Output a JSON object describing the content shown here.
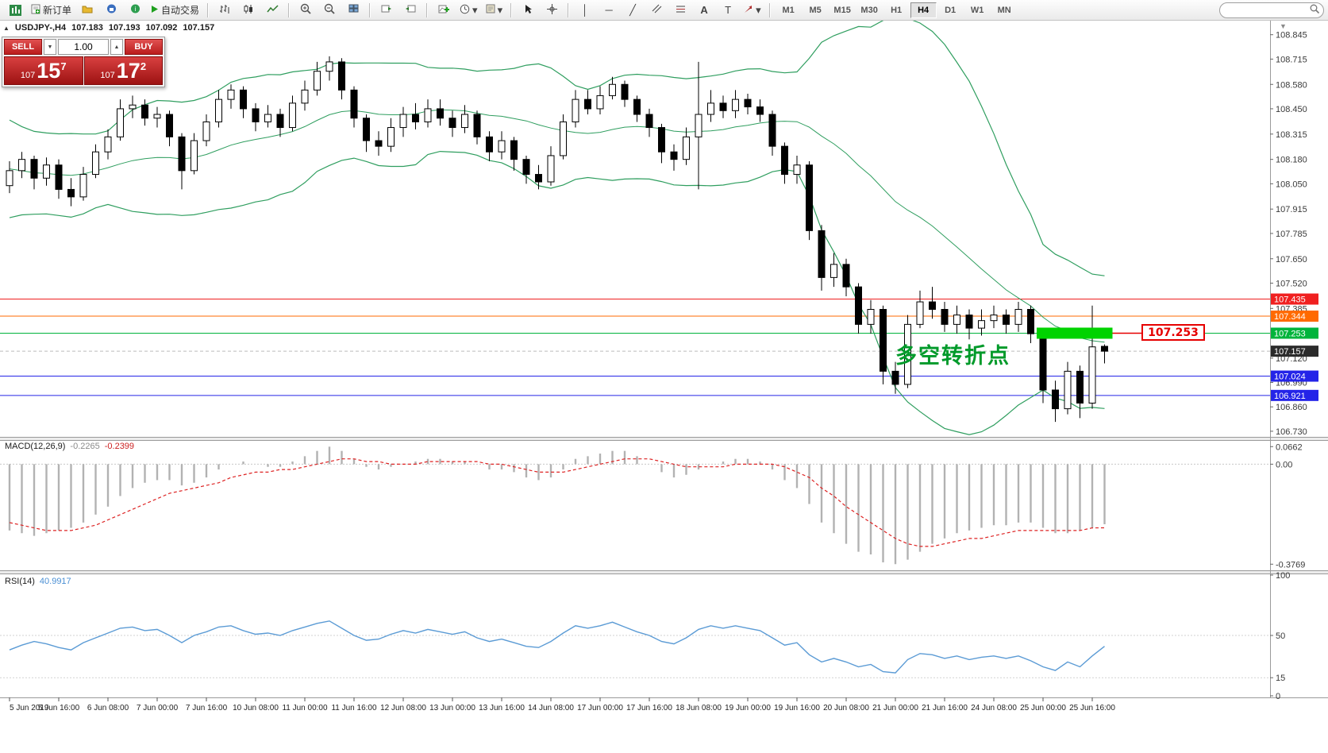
{
  "toolbar": {
    "new_order_label": "新订单",
    "auto_trading_label": "自动交易",
    "timeframes": [
      "M1",
      "M5",
      "M15",
      "M30",
      "H1",
      "H4",
      "D1",
      "W1",
      "MN"
    ],
    "active_timeframe": "H4"
  },
  "icons": {
    "collapse_arrow": "▲",
    "axis_arrow": "▼",
    "spin_up": "▲",
    "spin_down": "▼",
    "crosshair": "+",
    "vline": "│",
    "hline": "─",
    "trendline": "╱",
    "text_tool": "A",
    "label_tool": "T",
    "dropdown_arrow": "▾"
  },
  "chart_header": {
    "symbol": "USDJPY-,H4",
    "open": "107.183",
    "high": "107.193",
    "low": "107.092",
    "close": "107.157"
  },
  "trade_panel": {
    "sell_label": "SELL",
    "buy_label": "BUY",
    "volume": "1.00",
    "sell": {
      "prefix": "107",
      "big": "15",
      "sup": "7"
    },
    "buy": {
      "prefix": "107",
      "big": "17",
      "sup": "2"
    }
  },
  "indicators": {
    "macd_label": "MACD(12,26,9)",
    "macd_value": "-0.2265",
    "macd_signal_value": "-0.2399",
    "rsi_label": "RSI(14)",
    "rsi_value": "40.9917"
  },
  "annotations": {
    "turning_point_text": "多空转折点",
    "price_callout": "107.253"
  },
  "colors": {
    "bull": "#ffffff",
    "bear": "#000000",
    "wick": "#000000",
    "bands": "#2f9e5f",
    "macd_hist": "#b2b2b2",
    "macd_signal": "#dd2222",
    "rsi_line": "#5b9bd5",
    "highlight_bar": "#00d300",
    "callout_red": "#e60000",
    "current_price_bg": "#2b2b2b"
  },
  "chart_data": {
    "type": "candlestick",
    "symbol": "USDJPY",
    "timeframe": "H4",
    "price_axis": {
      "min": 106.7,
      "max": 108.92,
      "ticks": [
        108.845,
        108.715,
        108.58,
        108.45,
        108.315,
        108.18,
        108.05,
        107.915,
        107.785,
        107.65,
        107.52,
        107.385,
        107.12,
        106.99,
        106.86,
        106.73
      ]
    },
    "hlines": [
      {
        "price": 107.435,
        "color": "#f02020",
        "label": "107.435"
      },
      {
        "price": 107.344,
        "color": "#ff6a00",
        "label": "107.344"
      },
      {
        "price": 107.253,
        "color": "#00b43c",
        "label": "107.253"
      },
      {
        "price": 107.024,
        "color": "#2424e8",
        "label": "107.024"
      },
      {
        "price": 106.921,
        "color": "#2424e8",
        "label": "106.921"
      }
    ],
    "current_price": {
      "price": 107.157,
      "label": "107.157"
    },
    "time_labels": [
      "5 Jun 2019",
      "5 Jun 16:00",
      "6 Jun 08:00",
      "7 Jun 00:00",
      "7 Jun 16:00",
      "10 Jun 08:00",
      "11 Jun 00:00",
      "11 Jun 16:00",
      "12 Jun 08:00",
      "13 Jun 00:00",
      "13 Jun 16:00",
      "14 Jun 08:00",
      "17 Jun 00:00",
      "17 Jun 16:00",
      "18 Jun 08:00",
      "19 Jun 00:00",
      "19 Jun 16:00",
      "20 Jun 08:00",
      "21 Jun 00:00",
      "21 Jun 16:00",
      "24 Jun 08:00",
      "25 Jun 00:00",
      "25 Jun 16:00"
    ],
    "label_every": 4,
    "prehistory_closes": [
      108.42,
      108.38,
      108.3,
      108.22,
      108.15,
      108.05,
      107.95,
      107.9,
      107.95,
      108.05,
      108.12,
      108.2,
      108.28,
      108.32,
      108.25,
      108.15,
      108.05,
      108.0,
      108.05,
      108.1
    ],
    "candles": [
      [
        108.04,
        108.17,
        108.0,
        108.12
      ],
      [
        108.12,
        108.22,
        108.08,
        108.18
      ],
      [
        108.18,
        108.2,
        108.02,
        108.08
      ],
      [
        108.08,
        108.19,
        108.04,
        108.15
      ],
      [
        108.15,
        108.18,
        107.97,
        108.02
      ],
      [
        108.02,
        108.08,
        107.93,
        107.98
      ],
      [
        107.98,
        108.14,
        107.96,
        108.1
      ],
      [
        108.1,
        108.26,
        108.08,
        108.22
      ],
      [
        108.22,
        108.34,
        108.18,
        108.3
      ],
      [
        108.3,
        108.5,
        108.28,
        108.45
      ],
      [
        108.45,
        108.52,
        108.4,
        108.47
      ],
      [
        108.47,
        108.5,
        108.36,
        108.4
      ],
      [
        108.4,
        108.46,
        108.35,
        108.42
      ],
      [
        108.42,
        108.44,
        108.25,
        108.3
      ],
      [
        108.3,
        108.32,
        108.02,
        108.12
      ],
      [
        108.12,
        108.32,
        108.1,
        108.28
      ],
      [
        108.28,
        108.42,
        108.25,
        108.38
      ],
      [
        108.38,
        108.55,
        108.35,
        108.5
      ],
      [
        108.5,
        108.58,
        108.45,
        108.55
      ],
      [
        108.55,
        108.57,
        108.4,
        108.45
      ],
      [
        108.45,
        108.48,
        108.33,
        108.38
      ],
      [
        108.38,
        108.47,
        108.35,
        108.42
      ],
      [
        108.42,
        108.45,
        108.3,
        108.35
      ],
      [
        108.35,
        108.52,
        108.33,
        108.48
      ],
      [
        108.48,
        108.6,
        108.44,
        108.55
      ],
      [
        108.55,
        108.7,
        108.52,
        108.65
      ],
      [
        108.65,
        108.73,
        108.6,
        108.7
      ],
      [
        108.7,
        108.72,
        108.5,
        108.55
      ],
      [
        108.55,
        108.57,
        108.35,
        108.4
      ],
      [
        108.4,
        108.42,
        108.22,
        108.28
      ],
      [
        108.28,
        108.33,
        108.2,
        108.25
      ],
      [
        108.25,
        108.4,
        108.22,
        108.35
      ],
      [
        108.35,
        108.46,
        108.3,
        108.42
      ],
      [
        108.42,
        108.48,
        108.34,
        108.38
      ],
      [
        108.38,
        108.5,
        108.35,
        108.45
      ],
      [
        108.45,
        108.5,
        108.36,
        108.4
      ],
      [
        108.4,
        108.44,
        108.3,
        108.35
      ],
      [
        108.35,
        108.47,
        108.32,
        108.42
      ],
      [
        108.42,
        108.44,
        108.26,
        108.3
      ],
      [
        108.3,
        108.33,
        108.17,
        108.22
      ],
      [
        108.22,
        108.33,
        108.18,
        108.28
      ],
      [
        108.28,
        108.3,
        108.12,
        108.18
      ],
      [
        108.18,
        108.2,
        108.05,
        108.1
      ],
      [
        108.1,
        108.15,
        108.02,
        108.06
      ],
      [
        108.06,
        108.25,
        108.04,
        108.2
      ],
      [
        108.2,
        108.42,
        108.18,
        108.38
      ],
      [
        108.38,
        108.55,
        108.35,
        108.5
      ],
      [
        108.5,
        108.55,
        108.42,
        108.45
      ],
      [
        108.45,
        108.57,
        108.42,
        108.52
      ],
      [
        108.52,
        108.62,
        108.5,
        108.58
      ],
      [
        108.58,
        108.6,
        108.46,
        108.5
      ],
      [
        108.5,
        108.52,
        108.38,
        108.42
      ],
      [
        108.42,
        108.45,
        108.3,
        108.35
      ],
      [
        108.35,
        108.37,
        108.16,
        108.22
      ],
      [
        108.22,
        108.26,
        108.12,
        108.18
      ],
      [
        108.18,
        108.35,
        108.15,
        108.3
      ],
      [
        108.3,
        108.7,
        108.02,
        108.42
      ],
      [
        108.42,
        108.55,
        108.38,
        108.48
      ],
      [
        108.48,
        108.52,
        108.4,
        108.44
      ],
      [
        108.44,
        108.55,
        108.4,
        108.5
      ],
      [
        108.5,
        108.53,
        108.42,
        108.46
      ],
      [
        108.46,
        108.5,
        108.38,
        108.42
      ],
      [
        108.42,
        108.44,
        108.2,
        108.25
      ],
      [
        108.25,
        108.27,
        108.05,
        108.1
      ],
      [
        108.1,
        108.2,
        108.05,
        108.15
      ],
      [
        108.15,
        108.17,
        107.75,
        107.8
      ],
      [
        107.8,
        107.83,
        107.48,
        107.55
      ],
      [
        107.55,
        107.68,
        107.5,
        107.62
      ],
      [
        107.62,
        107.65,
        107.45,
        107.5
      ],
      [
        107.5,
        107.52,
        107.25,
        107.3
      ],
      [
        107.3,
        107.43,
        107.25,
        107.38
      ],
      [
        107.38,
        107.4,
        106.98,
        107.05
      ],
      [
        107.05,
        107.1,
        106.93,
        106.98
      ],
      [
        106.98,
        107.35,
        106.96,
        107.3
      ],
      [
        107.3,
        107.48,
        107.28,
        107.42
      ],
      [
        107.42,
        107.5,
        107.33,
        107.38
      ],
      [
        107.38,
        107.42,
        107.26,
        107.3
      ],
      [
        107.3,
        107.4,
        107.25,
        107.35
      ],
      [
        107.35,
        107.38,
        107.22,
        107.28
      ],
      [
        107.28,
        107.38,
        107.24,
        107.32
      ],
      [
        107.32,
        107.4,
        107.28,
        107.35
      ],
      [
        107.35,
        107.38,
        107.25,
        107.3
      ],
      [
        107.3,
        107.42,
        107.26,
        107.38
      ],
      [
        107.38,
        107.4,
        107.2,
        107.25
      ],
      [
        107.25,
        107.28,
        106.88,
        106.95
      ],
      [
        106.95,
        107.0,
        106.78,
        106.85
      ],
      [
        106.85,
        107.1,
        106.82,
        107.05
      ],
      [
        107.05,
        107.08,
        106.8,
        106.88
      ],
      [
        106.88,
        107.4,
        106.85,
        107.18
      ],
      [
        107.183,
        107.193,
        107.092,
        107.157
      ]
    ],
    "bollinger": {
      "period": 20,
      "deviation": 2
    },
    "macd": {
      "range": {
        "min": -0.4,
        "max": 0.085
      },
      "axis": [
        {
          "v": 0.0662,
          "label": "0.0662"
        },
        {
          "v": 0,
          "label": "0.00"
        },
        {
          "v": -0.3769,
          "label": "-0.3769"
        }
      ],
      "hist": [
        -0.25,
        -0.26,
        -0.27,
        -0.26,
        -0.25,
        -0.24,
        -0.22,
        -0.19,
        -0.16,
        -0.12,
        -0.09,
        -0.07,
        -0.06,
        -0.06,
        -0.08,
        -0.07,
        -0.05,
        -0.02,
        0.0,
        0.01,
        0.0,
        -0.01,
        -0.01,
        0.01,
        0.03,
        0.05,
        0.066,
        0.05,
        0.02,
        -0.01,
        -0.02,
        -0.01,
        0.0,
        0.01,
        0.02,
        0.02,
        0.01,
        0.01,
        0.0,
        -0.02,
        -0.02,
        -0.03,
        -0.05,
        -0.06,
        -0.05,
        -0.02,
        0.02,
        0.03,
        0.04,
        0.05,
        0.05,
        0.03,
        0.0,
        -0.03,
        -0.05,
        -0.04,
        -0.02,
        0.0,
        0.01,
        0.02,
        0.02,
        0.01,
        -0.02,
        -0.06,
        -0.09,
        -0.15,
        -0.22,
        -0.26,
        -0.3,
        -0.33,
        -0.34,
        -0.37,
        -0.3769,
        -0.36,
        -0.33,
        -0.3,
        -0.28,
        -0.26,
        -0.25,
        -0.24,
        -0.23,
        -0.23,
        -0.22,
        -0.22,
        -0.24,
        -0.26,
        -0.26,
        -0.25,
        -0.24,
        -0.2265
      ],
      "signal": [
        -0.22,
        -0.23,
        -0.24,
        -0.25,
        -0.25,
        -0.25,
        -0.24,
        -0.23,
        -0.21,
        -0.19,
        -0.17,
        -0.15,
        -0.13,
        -0.11,
        -0.1,
        -0.09,
        -0.08,
        -0.07,
        -0.05,
        -0.04,
        -0.03,
        -0.03,
        -0.02,
        -0.02,
        -0.01,
        0.0,
        0.01,
        0.02,
        0.02,
        0.01,
        0.01,
        0.0,
        0.0,
        0.0,
        0.01,
        0.01,
        0.01,
        0.01,
        0.01,
        0.0,
        0.0,
        -0.01,
        -0.02,
        -0.03,
        -0.03,
        -0.03,
        -0.02,
        -0.01,
        0.0,
        0.01,
        0.02,
        0.02,
        0.02,
        0.01,
        0.0,
        -0.01,
        -0.01,
        -0.01,
        -0.01,
        0.0,
        0.0,
        0.0,
        0.0,
        -0.01,
        -0.03,
        -0.05,
        -0.09,
        -0.12,
        -0.16,
        -0.19,
        -0.22,
        -0.25,
        -0.28,
        -0.3,
        -0.31,
        -0.31,
        -0.3,
        -0.29,
        -0.28,
        -0.28,
        -0.27,
        -0.26,
        -0.25,
        -0.25,
        -0.25,
        -0.25,
        -0.25,
        -0.25,
        -0.24,
        -0.2399
      ]
    },
    "rsi": {
      "axis": [
        {
          "v": 100,
          "label": "100"
        },
        {
          "v": 50,
          "label": "50"
        },
        {
          "v": 15,
          "label": "15"
        },
        {
          "v": 0,
          "label": "0"
        }
      ],
      "levels": [
        50,
        15
      ],
      "values": [
        38,
        42,
        45,
        43,
        40,
        38,
        44,
        48,
        52,
        56,
        57,
        54,
        55,
        50,
        44,
        50,
        53,
        57,
        58,
        54,
        51,
        52,
        50,
        54,
        57,
        60,
        62,
        56,
        50,
        46,
        47,
        51,
        54,
        52,
        55,
        53,
        51,
        53,
        48,
        45,
        47,
        44,
        41,
        40,
        45,
        52,
        58,
        56,
        58,
        61,
        57,
        53,
        50,
        45,
        43,
        48,
        55,
        58,
        56,
        58,
        56,
        54,
        48,
        42,
        44,
        34,
        28,
        31,
        28,
        24,
        26,
        20,
        19,
        30,
        35,
        34,
        31,
        33,
        30,
        32,
        33,
        31,
        33,
        29,
        24,
        21,
        28,
        24,
        33,
        40.99
      ]
    },
    "highlight_bar": {
      "price": 107.253,
      "from_candle": 84,
      "to_candle": 89
    },
    "callout": {
      "price": 107.253,
      "text": "107.253"
    },
    "annotation_anchor_price": 107.16
  }
}
